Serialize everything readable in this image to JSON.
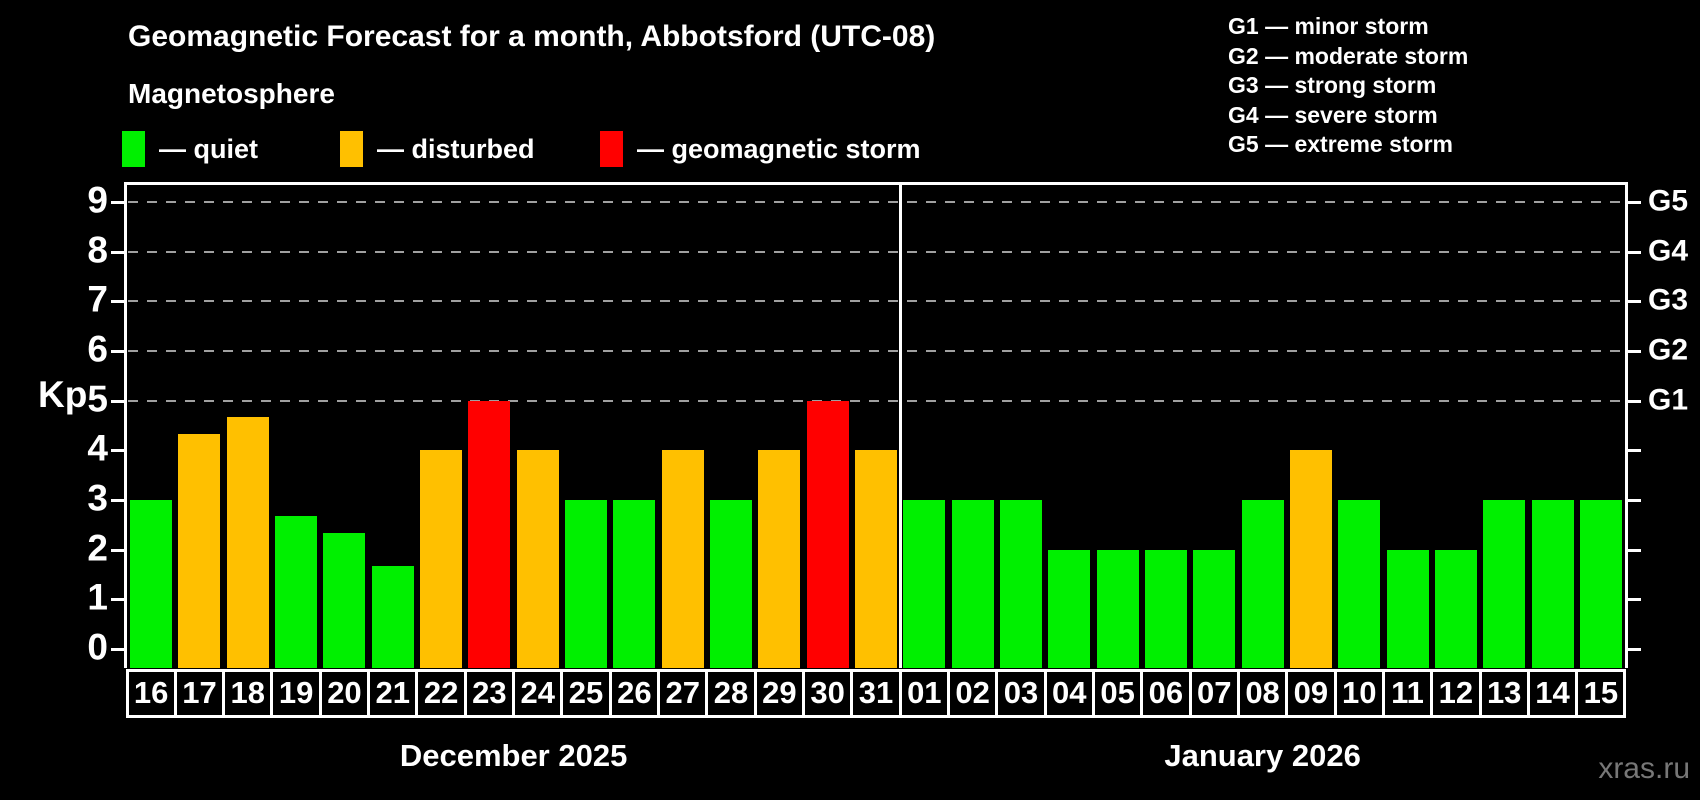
{
  "title": "Geomagnetic Forecast for a month, Abbotsford (UTC-08)",
  "subtitle": "Magnetosphere",
  "legend": {
    "items": [
      {
        "name": "quiet",
        "label": "— quiet",
        "color": "#00f000"
      },
      {
        "name": "disturbed",
        "label": "— disturbed",
        "color": "#ffc000"
      },
      {
        "name": "storm",
        "label": "— geomagnetic storm",
        "color": "#ff0000"
      }
    ]
  },
  "storm_scale_legend": [
    "G1 — minor storm",
    "G2 — moderate storm",
    "G3 — strong storm",
    "G4 — severe storm",
    "G5 — extreme storm"
  ],
  "watermark": "xras.ru",
  "chart_data": {
    "type": "bar",
    "ylabel": "Kp",
    "y_ticks": [
      0,
      1,
      2,
      3,
      4,
      5,
      6,
      7,
      8,
      9
    ],
    "ylim": [
      -0.4,
      9.4
    ],
    "grid": "dashed horizontal at storm levels only",
    "gridlines_at": [
      5,
      6,
      7,
      8,
      9
    ],
    "right_axis_labels": [
      {
        "kp": 5,
        "label": "G1"
      },
      {
        "kp": 6,
        "label": "G2"
      },
      {
        "kp": 7,
        "label": "G3"
      },
      {
        "kp": 8,
        "label": "G4"
      },
      {
        "kp": 9,
        "label": "G5"
      }
    ],
    "status_colors": {
      "quiet": "#00f000",
      "disturbed": "#ffc000",
      "storm": "#ff0000"
    },
    "months": [
      {
        "label": "December 2025",
        "days": [
          {
            "day": "16",
            "kp": 3.0,
            "status": "quiet"
          },
          {
            "day": "17",
            "kp": 4.33,
            "status": "disturbed"
          },
          {
            "day": "18",
            "kp": 4.67,
            "status": "disturbed"
          },
          {
            "day": "19",
            "kp": 2.67,
            "status": "quiet"
          },
          {
            "day": "20",
            "kp": 2.33,
            "status": "quiet"
          },
          {
            "day": "21",
            "kp": 1.67,
            "status": "quiet"
          },
          {
            "day": "22",
            "kp": 4.0,
            "status": "disturbed"
          },
          {
            "day": "23",
            "kp": 5.0,
            "status": "storm"
          },
          {
            "day": "24",
            "kp": 4.0,
            "status": "disturbed"
          },
          {
            "day": "25",
            "kp": 3.0,
            "status": "quiet"
          },
          {
            "day": "26",
            "kp": 3.0,
            "status": "quiet"
          },
          {
            "day": "27",
            "kp": 4.0,
            "status": "disturbed"
          },
          {
            "day": "28",
            "kp": 3.0,
            "status": "quiet"
          },
          {
            "day": "29",
            "kp": 4.0,
            "status": "disturbed"
          },
          {
            "day": "30",
            "kp": 5.0,
            "status": "storm"
          },
          {
            "day": "31",
            "kp": 4.0,
            "status": "disturbed"
          }
        ]
      },
      {
        "label": "January 2026",
        "days": [
          {
            "day": "01",
            "kp": 3.0,
            "status": "quiet"
          },
          {
            "day": "02",
            "kp": 3.0,
            "status": "quiet"
          },
          {
            "day": "03",
            "kp": 3.0,
            "status": "quiet"
          },
          {
            "day": "04",
            "kp": 2.0,
            "status": "quiet"
          },
          {
            "day": "05",
            "kp": 2.0,
            "status": "quiet"
          },
          {
            "day": "06",
            "kp": 2.0,
            "status": "quiet"
          },
          {
            "day": "07",
            "kp": 2.0,
            "status": "quiet"
          },
          {
            "day": "08",
            "kp": 3.0,
            "status": "quiet"
          },
          {
            "day": "09",
            "kp": 4.0,
            "status": "disturbed"
          },
          {
            "day": "10",
            "kp": 3.0,
            "status": "quiet"
          },
          {
            "day": "11",
            "kp": 2.0,
            "status": "quiet"
          },
          {
            "day": "12",
            "kp": 2.0,
            "status": "quiet"
          },
          {
            "day": "13",
            "kp": 3.0,
            "status": "quiet"
          },
          {
            "day": "14",
            "kp": 3.0,
            "status": "quiet"
          },
          {
            "day": "15",
            "kp": 3.0,
            "status": "quiet"
          }
        ]
      }
    ]
  }
}
